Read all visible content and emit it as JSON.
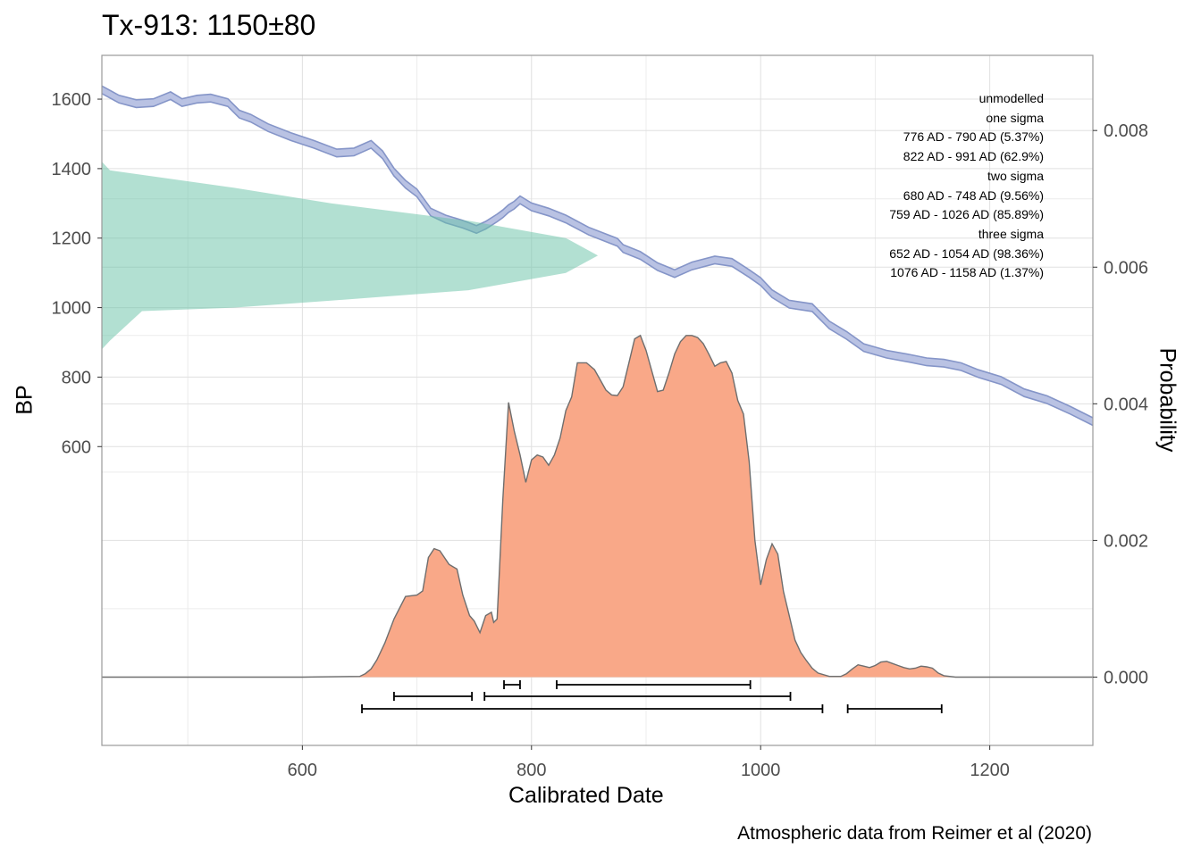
{
  "title": "Tx-913: 1150±80",
  "caption": "Atmospheric data from Reimer et al (2020)",
  "chart_data": {
    "type": "area",
    "title": "Tx-913: 1150±80",
    "xlabel": "Calibrated Date",
    "ylabel_left": "BP",
    "ylabel_right": "Probability",
    "xlim": [
      425,
      1290
    ],
    "x_ticks": [
      600,
      800,
      1000,
      1200
    ],
    "bp_lim": [
      -260,
      1726
    ],
    "bp_ticks": [
      600,
      800,
      1000,
      1200,
      1400,
      1600
    ],
    "prob_lim": [
      -0.001,
      0.0091
    ],
    "prob_ticks": [
      "0.000",
      "0.002",
      "0.004",
      "0.006",
      "0.008"
    ],
    "grid": true,
    "legend_position": "top-right",
    "colors": {
      "calibration_curve_fill": "#b9c2e3",
      "calibration_curve_line": "#8595c8",
      "radiocarbon_date": "#66c2a5",
      "calibrated_density_fill": "#f9a888",
      "calibrated_density_line": "#6e6e6e",
      "ranges": "#000000",
      "grid": "#e0e0e0",
      "panel_border": "#999999"
    },
    "radiocarbon_date": {
      "mean_bp": 1150,
      "sd": 80,
      "bp": [
        880,
        905,
        990,
        1000,
        1020,
        1050,
        1100,
        1150,
        1200,
        1250,
        1300,
        1345,
        1395,
        1420
      ],
      "width_x": [
        425,
        432,
        460,
        540,
        625,
        745,
        830,
        858,
        830,
        745,
        625,
        540,
        432,
        425
      ]
    },
    "calibration_curve": {
      "x": [
        425,
        440,
        455,
        470,
        485,
        495,
        508,
        520,
        535,
        545,
        555,
        570,
        590,
        610,
        630,
        645,
        660,
        670,
        680,
        690,
        700,
        712,
        725,
        740,
        752,
        760,
        770,
        775,
        780,
        785,
        790,
        800,
        815,
        830,
        850,
        875,
        880,
        895,
        910,
        925,
        940,
        960,
        975,
        990,
        1000,
        1010,
        1025,
        1045,
        1060,
        1075,
        1090,
        1110,
        1130,
        1145,
        1160,
        1175,
        1190,
        1210,
        1230,
        1250,
        1270,
        1290
      ],
      "bp": [
        1627,
        1600,
        1587,
        1590,
        1610,
        1590,
        1600,
        1603,
        1590,
        1557,
        1545,
        1518,
        1492,
        1470,
        1445,
        1448,
        1470,
        1440,
        1390,
        1355,
        1330,
        1275,
        1255,
        1240,
        1225,
        1237,
        1258,
        1270,
        1285,
        1295,
        1310,
        1290,
        1275,
        1255,
        1220,
        1188,
        1170,
        1150,
        1118,
        1098,
        1120,
        1137,
        1130,
        1098,
        1075,
        1040,
        1010,
        1000,
        950,
        920,
        885,
        866,
        854,
        844,
        840,
        830,
        810,
        790,
        755,
        735,
        705,
        672
      ],
      "half_width_bp": 11
    },
    "calibrated_density": {
      "x": [
        425,
        600,
        650,
        655,
        660,
        665,
        672,
        680,
        690,
        700,
        705,
        710,
        715,
        720,
        728,
        735,
        740,
        746,
        750,
        755,
        760,
        765,
        767,
        770,
        775,
        780,
        785,
        790,
        795,
        800,
        805,
        810,
        815,
        820,
        825,
        830,
        835,
        840,
        848,
        855,
        860,
        865,
        870,
        875,
        880,
        885,
        890,
        895,
        900,
        905,
        910,
        915,
        920,
        925,
        930,
        935,
        940,
        945,
        950,
        955,
        960,
        965,
        970,
        975,
        980,
        985,
        990,
        995,
        1000,
        1005,
        1010,
        1015,
        1020,
        1025,
        1030,
        1035,
        1040,
        1045,
        1050,
        1060,
        1070,
        1075,
        1080,
        1085,
        1090,
        1095,
        1100,
        1105,
        1110,
        1115,
        1120,
        1125,
        1130,
        1135,
        1140,
        1145,
        1150,
        1155,
        1160,
        1170,
        1200,
        1290
      ],
      "p": [
        0.0,
        0.0,
        1e-05,
        5e-05,
        0.00012,
        0.00025,
        0.0005,
        0.00085,
        0.00118,
        0.0012,
        0.00126,
        0.00175,
        0.00188,
        0.00185,
        0.00165,
        0.00158,
        0.0012,
        0.0009,
        0.00082,
        0.00065,
        0.0009,
        0.00095,
        0.0008,
        0.00085,
        0.0026,
        0.00402,
        0.0036,
        0.00325,
        0.00285,
        0.00318,
        0.00325,
        0.00322,
        0.0031,
        0.00325,
        0.0035,
        0.0039,
        0.0041,
        0.0046,
        0.0046,
        0.0045,
        0.00435,
        0.0042,
        0.00413,
        0.00412,
        0.00425,
        0.0046,
        0.00495,
        0.005,
        0.00478,
        0.00448,
        0.00418,
        0.0042,
        0.00445,
        0.00473,
        0.00491,
        0.005,
        0.005,
        0.00497,
        0.00488,
        0.00472,
        0.00455,
        0.0046,
        0.00462,
        0.00445,
        0.00405,
        0.00385,
        0.00315,
        0.002,
        0.00135,
        0.00172,
        0.00195,
        0.0018,
        0.00125,
        0.0009,
        0.00054,
        0.00036,
        0.00024,
        0.00013,
        6e-05,
        1e-05,
        1e-05,
        5e-05,
        0.00012,
        0.00018,
        0.00016,
        0.00014,
        0.00017,
        0.00022,
        0.00023,
        0.0002,
        0.00017,
        0.00014,
        0.00012,
        0.00013,
        0.00016,
        0.00015,
        0.00013,
        6e-05,
        2e-05,
        0.0,
        0.0,
        0.0
      ]
    },
    "ranges": {
      "one_sigma": [
        [
          776,
          790
        ],
        [
          822,
          991
        ]
      ],
      "two_sigma": [
        [
          680,
          748
        ],
        [
          759,
          1026
        ]
      ],
      "three_sigma": [
        [
          652,
          1054
        ],
        [
          1076,
          1158
        ]
      ]
    },
    "legend": [
      "unmodelled",
      "one sigma",
      "776 AD - 790 AD (5.37%)",
      "822 AD - 991 AD (62.9%)",
      "two sigma",
      "680 AD - 748 AD (9.56%)",
      "759 AD - 1026 AD (85.89%)",
      "three sigma",
      "652 AD - 1054 AD (98.36%)",
      "1076 AD - 1158 AD (1.37%)"
    ]
  }
}
